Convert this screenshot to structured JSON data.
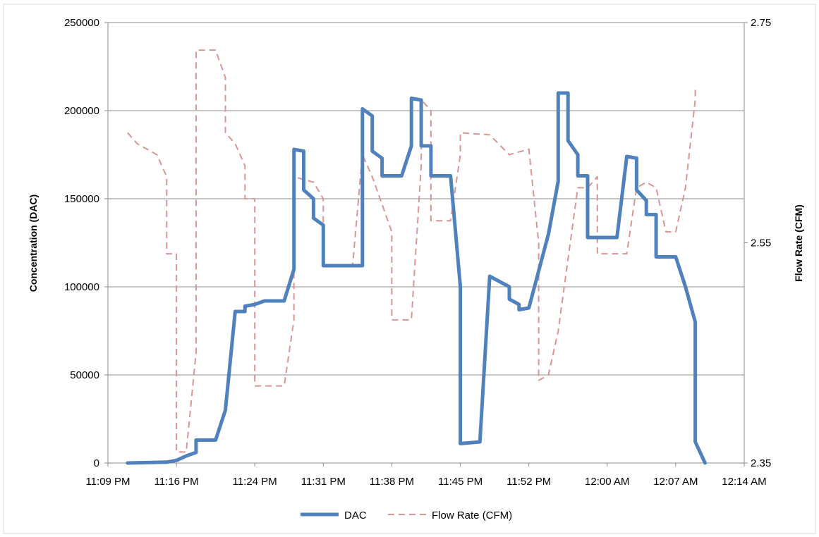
{
  "chart_data": {
    "type": "line",
    "title": "",
    "xlabel": "",
    "ylabel": "Concentration (DAC)",
    "y2label": "Flow Rate (CFM)",
    "x_ticks": [
      "11:09 PM",
      "11:16 PM",
      "11:24 PM",
      "11:31 PM",
      "11:38 PM",
      "11:45 PM",
      "11:52 PM",
      "12:00 AM",
      "12:07 AM",
      "12:14 AM"
    ],
    "x_range": [
      "11:09 PM",
      "12:14 AM"
    ],
    "ylim": [
      0,
      250000
    ],
    "y_ticks": [
      "0",
      "50000",
      "100000",
      "150000",
      "200000",
      "250000"
    ],
    "y2lim": [
      2.35,
      2.75
    ],
    "y2_ticks": [
      "2.35",
      "2.55",
      "2.75"
    ],
    "grid": "horizontal",
    "legend_position": "bottom",
    "series": [
      {
        "name": "DAC",
        "axis": "left",
        "color": "#4f81bd",
        "style": "solid",
        "points": [
          [
            "11:11 PM",
            0
          ],
          [
            "11:15 PM",
            500
          ],
          [
            "11:16 PM",
            1500
          ],
          [
            "11:17 PM",
            4000
          ],
          [
            "11:18 PM",
            6000
          ],
          [
            "11:18 PM",
            13000
          ],
          [
            "11:20 PM",
            13000
          ],
          [
            "11:21 PM",
            30000
          ],
          [
            "11:22 PM",
            86000
          ],
          [
            "11:23 PM",
            86000
          ],
          [
            "11:23 PM",
            89000
          ],
          [
            "11:24 PM",
            90000
          ],
          [
            "11:25 PM",
            92000
          ],
          [
            "11:27 PM",
            92000
          ],
          [
            "11:28 PM",
            110000
          ],
          [
            "11:28 PM",
            178000
          ],
          [
            "11:29 PM",
            177000
          ],
          [
            "11:29 PM",
            155000
          ],
          [
            "11:30 PM",
            150000
          ],
          [
            "11:30 PM",
            139000
          ],
          [
            "11:31 PM",
            135000
          ],
          [
            "11:31 PM",
            112000
          ],
          [
            "11:35 PM",
            112000
          ],
          [
            "11:35 PM",
            201000
          ],
          [
            "11:36 PM",
            197000
          ],
          [
            "11:36 PM",
            177000
          ],
          [
            "11:37 PM",
            173000
          ],
          [
            "11:37 PM",
            163000
          ],
          [
            "11:39 PM",
            163000
          ],
          [
            "11:40 PM",
            180000
          ],
          [
            "11:40 PM",
            207000
          ],
          [
            "11:41 PM",
            206000
          ],
          [
            "11:41 PM",
            180000
          ],
          [
            "11:42 PM",
            180000
          ],
          [
            "11:42 PM",
            163000
          ],
          [
            "11:44 PM",
            163000
          ],
          [
            "11:45 PM",
            100000
          ],
          [
            "11:45 PM",
            11000
          ],
          [
            "11:47 PM",
            12000
          ],
          [
            "11:48 PM",
            106000
          ],
          [
            "11:49 PM",
            103000
          ],
          [
            "11:50 PM",
            100000
          ],
          [
            "11:50 PM",
            93000
          ],
          [
            "11:51 PM",
            90000
          ],
          [
            "11:51 PM",
            87000
          ],
          [
            "11:52 PM",
            88000
          ],
          [
            "11:54 PM",
            130000
          ],
          [
            "11:55 PM",
            160000
          ],
          [
            "11:55 PM",
            210000
          ],
          [
            "11:56 PM",
            210000
          ],
          [
            "11:56 PM",
            183000
          ],
          [
            "11:57 PM",
            175000
          ],
          [
            "11:57 PM",
            163000
          ],
          [
            "11:58 PM",
            163000
          ],
          [
            "11:58 PM",
            128000
          ],
          [
            "12:01 AM",
            128000
          ],
          [
            "12:02 AM",
            174000
          ],
          [
            "12:03 AM",
            173000
          ],
          [
            "12:03 AM",
            155000
          ],
          [
            "12:04 AM",
            149000
          ],
          [
            "12:04 AM",
            141000
          ],
          [
            "12:05 AM",
            141000
          ],
          [
            "12:05 AM",
            117000
          ],
          [
            "12:07 AM",
            117000
          ],
          [
            "12:08 AM",
            100000
          ],
          [
            "12:09 AM",
            80000
          ],
          [
            "12:09 AM",
            18000
          ],
          [
            "12:09 AM",
            12000
          ],
          [
            "12:10 AM",
            0
          ]
        ]
      },
      {
        "name": "Flow Rate (CFM)",
        "axis": "right",
        "color": "#d99694",
        "style": "dashed",
        "points": [
          [
            "11:11 PM",
            2.65
          ],
          [
            "11:12 PM",
            2.64
          ],
          [
            "11:13 PM",
            2.635
          ],
          [
            "11:14 PM",
            2.63
          ],
          [
            "11:15 PM",
            2.61
          ],
          [
            "11:15 PM",
            2.54
          ],
          [
            "11:16 PM",
            2.54
          ],
          [
            "11:16 PM",
            2.36
          ],
          [
            "11:17 PM",
            2.36
          ],
          [
            "11:18 PM",
            2.45
          ],
          [
            "11:18 PM",
            2.725
          ],
          [
            "11:20 PM",
            2.725
          ],
          [
            "11:21 PM",
            2.7
          ],
          [
            "11:21 PM",
            2.65
          ],
          [
            "11:22 PM",
            2.64
          ],
          [
            "11:23 PM",
            2.62
          ],
          [
            "11:23 PM",
            2.59
          ],
          [
            "11:24 PM",
            2.59
          ],
          [
            "11:24 PM",
            2.42
          ],
          [
            "11:27 PM",
            2.42
          ],
          [
            "11:28 PM",
            2.48
          ],
          [
            "11:28 PM",
            2.61
          ],
          [
            "11:30 PM",
            2.605
          ],
          [
            "11:31 PM",
            2.59
          ],
          [
            "11:31 PM",
            2.53
          ],
          [
            "11:34 PM",
            2.53
          ],
          [
            "11:35 PM",
            2.63
          ],
          [
            "11:36 PM",
            2.61
          ],
          [
            "11:38 PM",
            2.56
          ],
          [
            "11:38 PM",
            2.48
          ],
          [
            "11:40 PM",
            2.48
          ],
          [
            "11:41 PM",
            2.62
          ],
          [
            "11:41 PM",
            2.68
          ],
          [
            "11:42 PM",
            2.67
          ],
          [
            "11:42 PM",
            2.57
          ],
          [
            "11:44 PM",
            2.57
          ],
          [
            "11:45 PM",
            2.63
          ],
          [
            "11:45 PM",
            2.65
          ],
          [
            "11:48 PM",
            2.648
          ],
          [
            "11:50 PM",
            2.63
          ],
          [
            "11:52 PM",
            2.635
          ],
          [
            "11:53 PM",
            2.55
          ],
          [
            "11:53 PM",
            2.425
          ],
          [
            "11:54 PM",
            2.43
          ],
          [
            "11:55 PM",
            2.47
          ],
          [
            "11:57 PM",
            2.6
          ],
          [
            "11:58 PM",
            2.6
          ],
          [
            "11:59 PM",
            2.61
          ],
          [
            "11:59 PM",
            2.54
          ],
          [
            "12:02 AM",
            2.54
          ],
          [
            "12:03 AM",
            2.6
          ],
          [
            "12:04 AM",
            2.605
          ],
          [
            "12:05 AM",
            2.6
          ],
          [
            "12:06 AM",
            2.56
          ],
          [
            "12:07 AM",
            2.56
          ],
          [
            "12:08 AM",
            2.6
          ],
          [
            "12:09 AM",
            2.68
          ],
          [
            "12:09 AM",
            2.69
          ]
        ]
      }
    ]
  }
}
